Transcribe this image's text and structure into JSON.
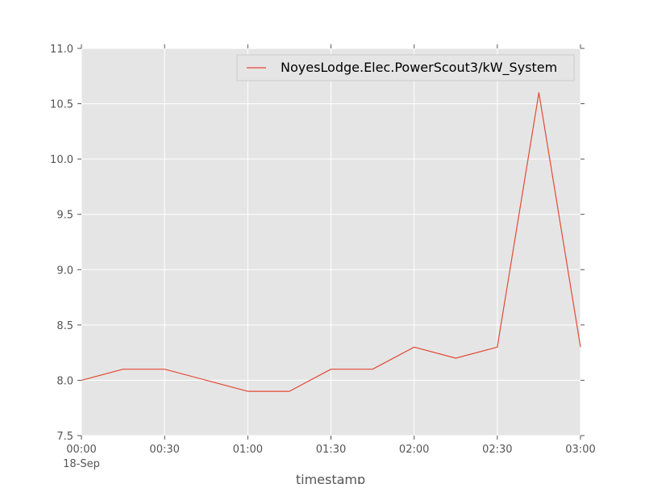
{
  "chart_data": {
    "type": "line",
    "xlabel": "timestamp",
    "ylabel": "",
    "x": [
      "00:00",
      "00:15",
      "00:30",
      "00:45",
      "01:00",
      "01:15",
      "01:30",
      "01:45",
      "02:00",
      "02:15",
      "02:30",
      "02:45",
      "03:00"
    ],
    "x_date_label": "18-Sep",
    "xlim": [
      "00:00",
      "03:00"
    ],
    "x_ticks": [
      "00:00",
      "00:30",
      "01:00",
      "01:30",
      "02:00",
      "02:30",
      "03:00"
    ],
    "ylim": [
      7.5,
      11.0
    ],
    "y_ticks": [
      "7.5",
      "8.0",
      "8.5",
      "9.0",
      "9.5",
      "10.0",
      "10.5",
      "11.0"
    ],
    "grid": true,
    "legend_position": "top-right",
    "series": [
      {
        "name": "NoyesLodge.Elec.PowerScout3/kW_System",
        "color": "#e24a33",
        "values": [
          8.0,
          8.1,
          8.1,
          8.0,
          7.9,
          7.9,
          8.1,
          8.1,
          8.3,
          8.2,
          8.3,
          10.6,
          8.3
        ]
      }
    ],
    "background_color": "#e5e5e5",
    "grid_color": "#ffffff"
  }
}
